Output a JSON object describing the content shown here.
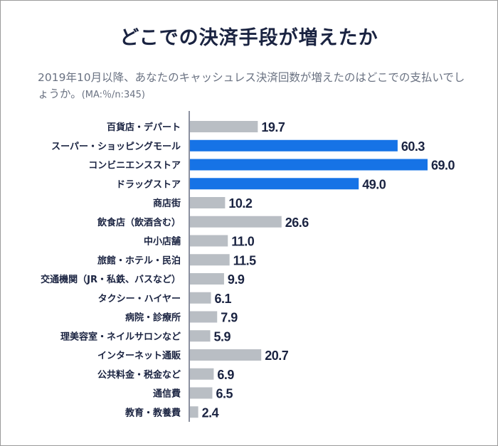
{
  "chart_data": {
    "type": "bar",
    "orientation": "horizontal",
    "title": "どこでの決済手段が増えたか",
    "subtitle": "2019年10月以降、あなたのキャッシュレス決済回数が増えたのはどこでの支払いでしょうか。",
    "note": "(MA:％/n:345)",
    "categories": [
      "百貨店・デパート",
      "スーパー・ショッピングモール",
      "コンビニエンスストア",
      "ドラッグストア",
      "商店街",
      "飲食店（飲酒含む）",
      "中小店舗",
      "旅館・ホテル・民泊",
      "交通機関（JR・私鉄、バスなど）",
      "タクシー・ハイヤー",
      "病院・診療所",
      "理美容室・ネイルサロンなど",
      "インターネット通販",
      "公共料金・税金など",
      "通信費",
      "教育・教養費"
    ],
    "values": [
      19.7,
      60.3,
      69.0,
      49.0,
      10.2,
      26.6,
      11.0,
      11.5,
      9.9,
      6.1,
      7.9,
      5.9,
      20.7,
      6.9,
      6.5,
      2.4
    ],
    "highlighted": [
      false,
      true,
      true,
      true,
      false,
      false,
      false,
      false,
      false,
      false,
      false,
      false,
      false,
      false,
      false,
      false
    ],
    "value_labels": [
      "19.7",
      "60.3",
      "69.0",
      "49.0",
      "10.2",
      "26.6",
      "11.0",
      "11.5",
      "9.9",
      "6.1",
      "7.9",
      "5.9",
      "20.7",
      "6.9",
      "6.5",
      "2.4"
    ],
    "xlim": [
      0,
      69
    ],
    "grid": false,
    "colors": {
      "highlight": "#1673e6",
      "default": "#b9bec4",
      "text": "#1a2341",
      "axis": "#1a2341"
    }
  }
}
